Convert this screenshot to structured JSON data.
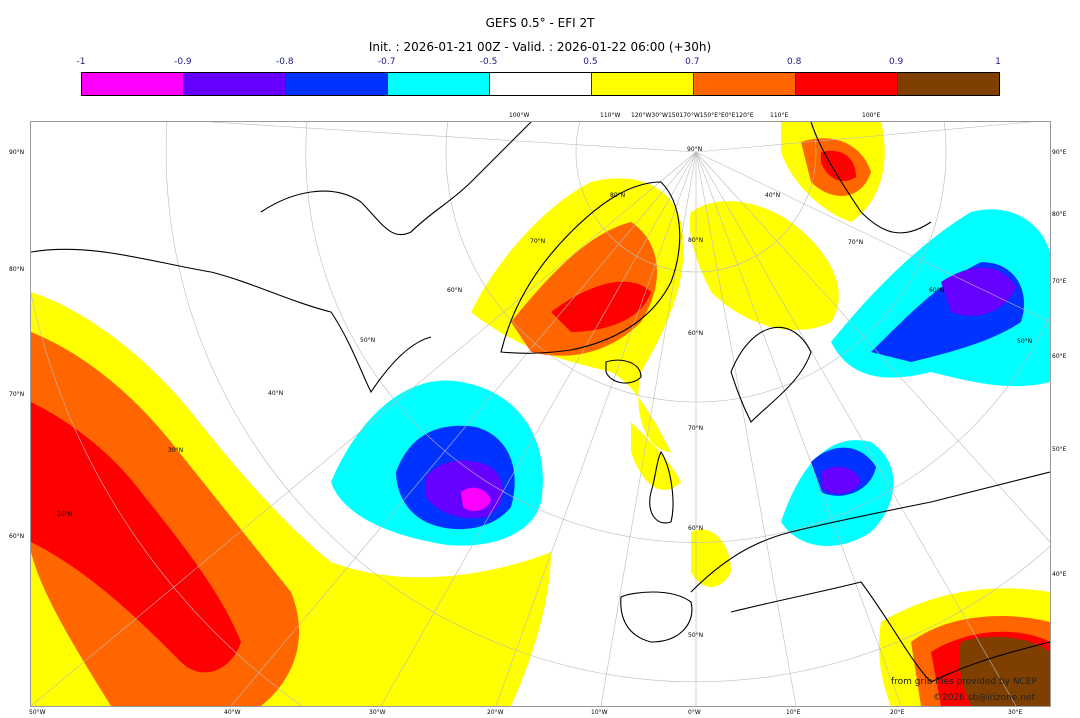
{
  "title": "GEFS 0.5° - EFI 2T",
  "subtitle": "Init. : 2026-01-21 00Z - Valid. : 2026-01-22 06:00 (+30h)",
  "colorbar": {
    "ticks": [
      "-1",
      "-0.9",
      "-0.8",
      "-0.7",
      "-0.5",
      "0.5",
      "0.7",
      "0.8",
      "0.9",
      "1"
    ],
    "colors": [
      "#ff00ff",
      "#6600ff",
      "#0033ff",
      "#00ffff",
      "#ffffff",
      "#ffff00",
      "#ff6600",
      "#ff0000",
      "#7f3f00"
    ]
  },
  "axes": {
    "left": [
      "90°N",
      "80°N",
      "70°N",
      "60°N"
    ],
    "right": [
      "90°E",
      "80°E",
      "70°E",
      "60°E",
      "50°E",
      "40°E"
    ],
    "bottom": [
      "50°W",
      "40°W",
      "30°W",
      "20°W",
      "10°W",
      "0°W",
      "10°E",
      "20°E",
      "30°E"
    ],
    "top": [
      "100°W",
      "110°W",
      "120°W30°W150170°W150°E°E0°E120°E",
      "110°E",
      "100°E"
    ],
    "lat_labels": [
      "90°N",
      "80°N",
      "70°N",
      "60°N",
      "50°N",
      "40°N",
      "30°N",
      "20°N",
      "80°N",
      "70°N",
      "60°N",
      "50°N",
      "60°N",
      "70°N",
      "60°N",
      "50°N",
      "40°N"
    ]
  },
  "credits": {
    "source": "from grib files provided by NCEP",
    "copyright": "©2026 sb@irizone.net"
  }
}
